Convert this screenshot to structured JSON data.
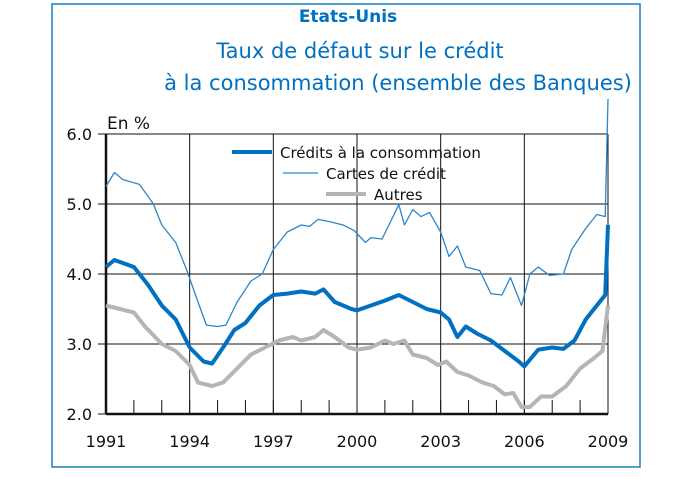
{
  "chart_data": {
    "type": "line",
    "region": "Etats-Unis",
    "title": "Taux de défaut sur le crédit à la consommation (ensemble des Banques)",
    "title_lines": [
      "Taux de défaut sur le crédit",
      "à la consommation (ensemble des Banques)"
    ],
    "ylabel": "En %",
    "xlabel": "",
    "xlim": [
      1991,
      2009
    ],
    "ylim": [
      2.0,
      6.0
    ],
    "x_ticks": [
      "1991",
      "1994",
      "1997",
      "2000",
      "2003",
      "2006",
      "2009"
    ],
    "y_ticks": [
      "6.0",
      "5.0",
      "4.0",
      "3.0",
      "2.0"
    ],
    "grid": true,
    "legend_position": "top-right",
    "colors": {
      "frame": "#1a7fc1",
      "title": "#0070c0",
      "consumer": "#0070c0",
      "cards": "#2e86c8",
      "others": "#b5b5b5"
    },
    "series": [
      {
        "name": "Crédits à la consommation",
        "x": [
          1991,
          1991.3,
          1992,
          1992.5,
          1993,
          1993.5,
          1994,
          1994.5,
          1994.8,
          1995.2,
          1995.6,
          1996,
          1996.5,
          1997,
          1997.5,
          1998,
          1998.5,
          1998.8,
          1999.2,
          1999.8,
          2000,
          2000.5,
          2001,
          2001.5,
          2002,
          2002.5,
          2003,
          2003.3,
          2003.6,
          2003.9,
          2004.3,
          2004.8,
          2005.3,
          2005.8,
          2006,
          2006.5,
          2007,
          2007.4,
          2007.8,
          2008.2,
          2008.6,
          2008.9,
          2009
        ],
        "y": [
          4.1,
          4.2,
          4.1,
          3.85,
          3.55,
          3.35,
          2.95,
          2.75,
          2.72,
          2.95,
          3.2,
          3.3,
          3.55,
          3.7,
          3.72,
          3.75,
          3.72,
          3.78,
          3.6,
          3.5,
          3.48,
          3.55,
          3.62,
          3.7,
          3.6,
          3.5,
          3.45,
          3.35,
          3.1,
          3.25,
          3.15,
          3.05,
          2.9,
          2.75,
          2.68,
          2.92,
          2.95,
          2.93,
          3.05,
          3.35,
          3.55,
          3.7,
          4.7
        ]
      },
      {
        "name": "Cartes de crédit",
        "x": [
          1991,
          1991.3,
          1991.6,
          1992.2,
          1992.7,
          1993,
          1993.5,
          1993.9,
          1994.3,
          1994.6,
          1995,
          1995.3,
          1995.7,
          1996.2,
          1996.6,
          1997,
          1997.5,
          1998,
          1998.3,
          1998.6,
          1999,
          1999.5,
          1999.9,
          2000.3,
          2000.5,
          2000.9,
          2001.5,
          2001.7,
          2002,
          2002.3,
          2002.6,
          2003,
          2003.3,
          2003.6,
          2003.9,
          2004.4,
          2004.8,
          2005.2,
          2005.5,
          2005.9,
          2006.2,
          2006.5,
          2006.9,
          2007.4,
          2007.7,
          2008.2,
          2008.6,
          2008.9,
          2009
        ],
        "y": [
          5.25,
          5.45,
          5.35,
          5.28,
          5.0,
          4.7,
          4.45,
          4.05,
          3.6,
          3.27,
          3.25,
          3.27,
          3.6,
          3.9,
          4.0,
          4.35,
          4.6,
          4.7,
          4.68,
          4.78,
          4.75,
          4.7,
          4.62,
          4.45,
          4.52,
          4.5,
          4.99,
          4.7,
          4.92,
          4.82,
          4.88,
          4.6,
          4.25,
          4.4,
          4.1,
          4.05,
          3.72,
          3.7,
          3.95,
          3.55,
          4.0,
          4.1,
          3.98,
          4.0,
          4.35,
          4.65,
          4.85,
          4.82,
          6.5
        ]
      },
      {
        "name": "Autres",
        "x": [
          1991,
          1991.5,
          1992,
          1992.4,
          1993,
          1993.5,
          1994,
          1994.3,
          1994.8,
          1995.2,
          1995.7,
          1996.2,
          1996.7,
          1997.2,
          1997.7,
          1998,
          1998.5,
          1998.8,
          1999.2,
          1999.7,
          2000,
          2000.5,
          2001,
          2001.3,
          2001.7,
          2002,
          2002.5,
          2002.9,
          2003.2,
          2003.6,
          2004,
          2004.5,
          2004.9,
          2005.3,
          2005.6,
          2005.9,
          2006.2,
          2006.6,
          2007,
          2007.5,
          2008,
          2008.5,
          2008.8,
          2009
        ],
        "y": [
          3.55,
          3.5,
          3.45,
          3.25,
          3.0,
          2.9,
          2.7,
          2.45,
          2.4,
          2.45,
          2.65,
          2.85,
          2.95,
          3.05,
          3.1,
          3.05,
          3.1,
          3.2,
          3.1,
          2.95,
          2.92,
          2.95,
          3.05,
          3.0,
          3.05,
          2.85,
          2.8,
          2.7,
          2.75,
          2.6,
          2.55,
          2.45,
          2.4,
          2.28,
          2.3,
          2.1,
          2.1,
          2.25,
          2.25,
          2.4,
          2.65,
          2.8,
          2.9,
          3.55
        ]
      }
    ]
  }
}
